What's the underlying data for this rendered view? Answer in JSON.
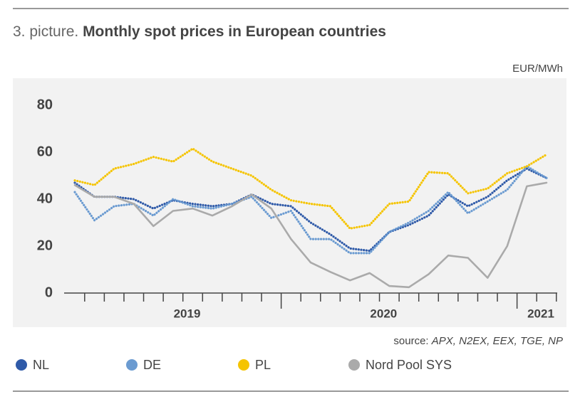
{
  "chart_data": {
    "type": "line",
    "title_prefix": "3. picture.",
    "title": "Monthly spot prices in European countries",
    "unit": "EUR/MWh",
    "source_prefix": "source:",
    "source": "APX, N2EX, EEX, TGE, NP",
    "categories": [
      null,
      null,
      null,
      null,
      null,
      null,
      "2019",
      null,
      null,
      null,
      null,
      null,
      null,
      null,
      null,
      null,
      "2020",
      null,
      null,
      null,
      null,
      null,
      null,
      null,
      "2021"
    ],
    "series": [
      {
        "name": "NL",
        "color": "#2f5aa8",
        "style": "dotted",
        "values": [
          47,
          41,
          41,
          40,
          36,
          39.5,
          38,
          37,
          38,
          42,
          38,
          37,
          30,
          25,
          19,
          18,
          26,
          29,
          33,
          42,
          37,
          41,
          48,
          53,
          49
        ]
      },
      {
        "name": "DE",
        "color": "#6b9bd1",
        "style": "dotted",
        "values": [
          43,
          31,
          37,
          38,
          33,
          40,
          37,
          36,
          38,
          41,
          32,
          35,
          23,
          23,
          17,
          17,
          26,
          30,
          35,
          43,
          34,
          39,
          44,
          54,
          49
        ]
      },
      {
        "name": "PL",
        "color": "#f5c400",
        "style": "dotted",
        "values": [
          48,
          46,
          53,
          55,
          58,
          56,
          61.5,
          56,
          53,
          50,
          44,
          39.5,
          38,
          37,
          27.5,
          29,
          38,
          39,
          51.5,
          51,
          42.5,
          44.5,
          51,
          54,
          59
        ]
      },
      {
        "name": "Nord Pool SYS",
        "color": "#aaaaaa",
        "style": "solid",
        "values": [
          46,
          41,
          41,
          38,
          28.5,
          35,
          36,
          33,
          37,
          42,
          36,
          23,
          13,
          9,
          5.4,
          8.5,
          3,
          2.5,
          8,
          16,
          15,
          6.5,
          20,
          45.5,
          47
        ]
      }
    ],
    "ylim": [
      0,
      80
    ],
    "yticks": [
      0,
      20,
      40,
      60,
      80
    ]
  }
}
